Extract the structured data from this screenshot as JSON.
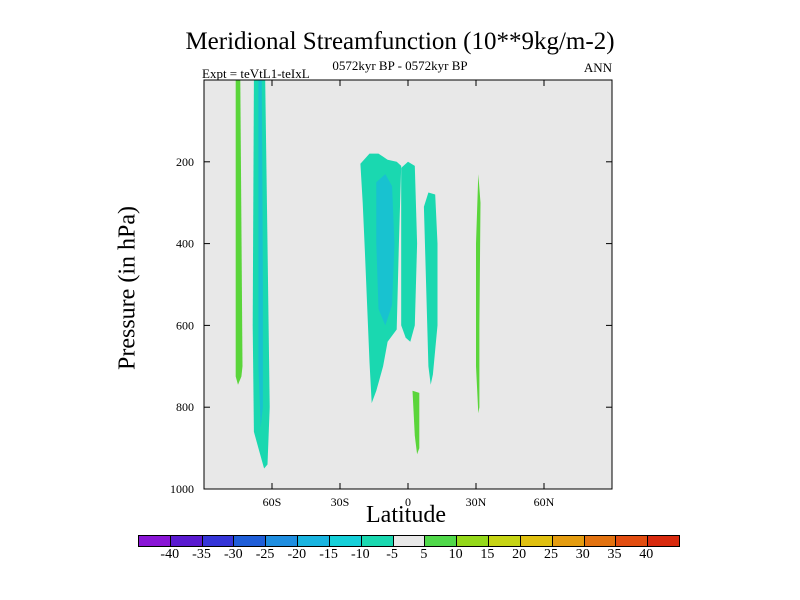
{
  "chart_data": {
    "type": "heatmap",
    "title": "Meridional Streamfunction (10**9kg/m-2)",
    "subtitle_left": "Expt = teVtL1-teIxL",
    "subtitle_center": "0572kyr BP - 0572kyr BP",
    "subtitle_right": "ANN",
    "xlabel": "Latitude",
    "ylabel": "Pressure (in hPa)",
    "xlim": [
      -90,
      90
    ],
    "ylim": [
      1000,
      0
    ],
    "x_ticks": [
      {
        "value": -60,
        "label": "60S"
      },
      {
        "value": -30,
        "label": "30S"
      },
      {
        "value": 0,
        "label": "0"
      },
      {
        "value": 30,
        "label": "30N"
      },
      {
        "value": 60,
        "label": "60N"
      }
    ],
    "y_ticks": [
      {
        "value": 200,
        "label": "200"
      },
      {
        "value": 400,
        "label": "400"
      },
      {
        "value": 600,
        "label": "600"
      },
      {
        "value": 800,
        "label": "800"
      },
      {
        "value": 1000,
        "label": "1000"
      }
    ],
    "background_color": "#e8e8e8",
    "colorbar": {
      "levels": [
        "-40",
        "-35",
        "-30",
        "-25",
        "-20",
        "-15",
        "-10",
        "-5",
        "5",
        "10",
        "15",
        "20",
        "25",
        "30",
        "35",
        "40"
      ],
      "colors": [
        "#8a15d6",
        "#5a1ad0",
        "#3535d8",
        "#1f5ed8",
        "#1f8ee0",
        "#19b4e0",
        "#15cfd8",
        "#1ad8b0",
        "#e8e8e8",
        "#50d84a",
        "#94d81a",
        "#c6d414",
        "#e0c010",
        "#e49c10",
        "#e27210",
        "#e24d10",
        "#d82a0e"
      ]
    },
    "regions": [
      {
        "name": "sh-positive-band",
        "level": "5 to 10",
        "color": "#5ad53a",
        "points": [
          [
            -76,
            0
          ],
          [
            -74,
            0
          ],
          [
            -73,
            700
          ],
          [
            -73.5,
            725
          ],
          [
            -75,
            745
          ],
          [
            -76,
            725
          ]
        ]
      },
      {
        "name": "sh-negative-band",
        "level": "-5 to -10",
        "color": "#1ad8b0",
        "points": [
          [
            -68,
            0
          ],
          [
            -63,
            0
          ],
          [
            -62,
            400
          ],
          [
            -61,
            800
          ],
          [
            -62,
            940
          ],
          [
            -63.5,
            950
          ],
          [
            -66,
            900
          ],
          [
            -68,
            860
          ],
          [
            -68.5,
            600
          ]
        ]
      },
      {
        "name": "sh-negative-core",
        "level": "-10 to -15",
        "color": "#18c2d0",
        "points": [
          [
            -66,
            0
          ],
          [
            -64.5,
            0
          ],
          [
            -64,
            500
          ],
          [
            -64,
            800
          ],
          [
            -65,
            850
          ],
          [
            -66,
            700
          ]
        ]
      },
      {
        "name": "tropical-negative-west",
        "level": "-5 to -10",
        "color": "#1ad8b0",
        "points": [
          [
            -21,
            205
          ],
          [
            -17,
            180
          ],
          [
            -13,
            180
          ],
          [
            -9,
            195
          ],
          [
            -5,
            200
          ],
          [
            -3,
            210
          ],
          [
            -4,
            400
          ],
          [
            -5,
            610
          ],
          [
            -9,
            640
          ],
          [
            -11,
            700
          ],
          [
            -14,
            760
          ],
          [
            -16,
            790
          ],
          [
            -17,
            690
          ],
          [
            -19,
            420
          ],
          [
            -20,
            300
          ]
        ]
      },
      {
        "name": "tropical-negative-west-core",
        "level": "-10 to -15",
        "color": "#18c2d0",
        "points": [
          [
            -14,
            250
          ],
          [
            -10,
            230
          ],
          [
            -7,
            260
          ],
          [
            -6,
            400
          ],
          [
            -7,
            550
          ],
          [
            -10,
            600
          ],
          [
            -13,
            560
          ],
          [
            -14,
            400
          ]
        ]
      },
      {
        "name": "tropical-negative-mid",
        "level": "-5 to -10",
        "color": "#1ad8b0",
        "points": [
          [
            -3,
            215
          ],
          [
            0,
            200
          ],
          [
            3,
            210
          ],
          [
            4,
            400
          ],
          [
            3,
            600
          ],
          [
            1,
            640
          ],
          [
            -1,
            630
          ],
          [
            -3,
            600
          ]
        ]
      },
      {
        "name": "tropical-negative-east",
        "level": "-5 to -10",
        "color": "#1ad8b0",
        "points": [
          [
            7,
            310
          ],
          [
            9,
            275
          ],
          [
            12,
            280
          ],
          [
            13,
            400
          ],
          [
            13,
            600
          ],
          [
            12,
            660
          ],
          [
            11,
            720
          ],
          [
            10,
            745
          ],
          [
            9,
            700
          ],
          [
            8,
            500
          ]
        ]
      },
      {
        "name": "equatorial-positive",
        "level": "5 to 10",
        "color": "#5ad53a",
        "points": [
          [
            2,
            760
          ],
          [
            5,
            765
          ],
          [
            5,
            900
          ],
          [
            4,
            915
          ],
          [
            3,
            870
          ]
        ]
      },
      {
        "name": "nh-positive-band",
        "level": "5 to 10",
        "color": "#5ad53a",
        "points": [
          [
            31,
            230
          ],
          [
            32,
            300
          ],
          [
            31.5,
            600
          ],
          [
            31.5,
            800
          ],
          [
            31,
            815
          ],
          [
            30,
            700
          ],
          [
            30,
            400
          ]
        ]
      }
    ]
  }
}
